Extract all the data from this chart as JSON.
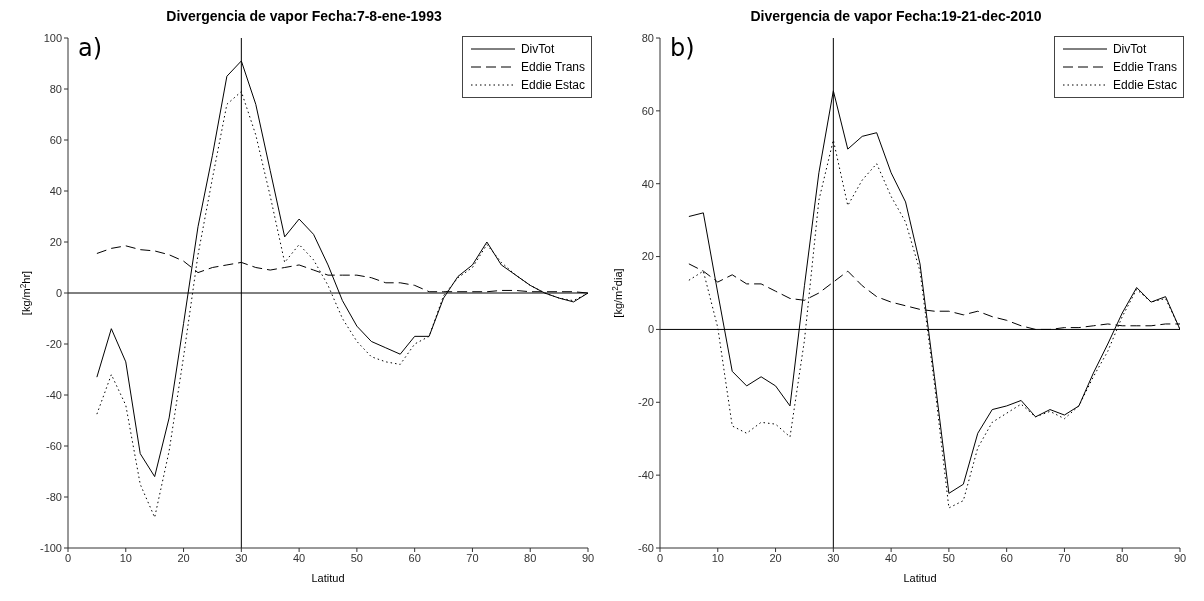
{
  "chart_data": [
    {
      "type": "line",
      "title": "Divergencia de vapor Fecha:7-8-ene-1993",
      "xlabel": "Latitud",
      "ylabel": "[kg/m$^{2}$hr]",
      "annotations": [
        "a)"
      ],
      "legend": "top right",
      "grid": false,
      "x": [
        5,
        7.5,
        10,
        12.5,
        15,
        17.5,
        20,
        22.5,
        25,
        27.5,
        30,
        32.5,
        35,
        37.5,
        40,
        42.5,
        45,
        47.5,
        50,
        52.5,
        55,
        57.5,
        60,
        62.5,
        65,
        67.5,
        70,
        72.5,
        75,
        77.5,
        80,
        82.5,
        85,
        87.5,
        90
      ],
      "xlim": [
        0,
        90
      ],
      "xticks": [
        0,
        10,
        20,
        30,
        40,
        50,
        60,
        70,
        80,
        90
      ],
      "ylim": [
        -100,
        100
      ],
      "yticks": [
        -100,
        -80,
        -60,
        -40,
        -20,
        0,
        20,
        40,
        60,
        80,
        100
      ],
      "ref_lines": [
        {
          "axis": "x",
          "value": 30,
          "color": "#000000"
        },
        {
          "axis": "y",
          "value": 0,
          "color": "#000000"
        }
      ],
      "series": [
        {
          "name": "DivTot",
          "color": "#000000",
          "line_style": "solid",
          "values": [
            -33,
            -14,
            -27,
            -63,
            -72,
            -49,
            -12,
            26,
            54,
            85,
            91,
            74,
            48,
            22,
            29,
            23,
            11,
            -3,
            -13,
            -19,
            -21.5,
            -24,
            -17,
            -17,
            -2,
            6.5,
            11,
            20,
            11,
            7,
            3,
            0,
            -2,
            -3.5,
            0
          ]
        },
        {
          "name": "Eddie Trans",
          "color": "#000000",
          "line_style": "dashed",
          "values": [
            15.5,
            17.5,
            18.5,
            17,
            16.5,
            15,
            12.5,
            8,
            10,
            11,
            12,
            10,
            9,
            10,
            11,
            9,
            7,
            7,
            7,
            6,
            4,
            4,
            3,
            0.5,
            0.5,
            0.5,
            0.5,
            0.5,
            1,
            1,
            0.5,
            0.5,
            0.5,
            0.5,
            0
          ]
        },
        {
          "name": "Eddie Estac",
          "color": "#000000",
          "line_style": "dotted",
          "values": [
            -47.5,
            -32,
            -44,
            -75,
            -88,
            -62,
            -25,
            15,
            45,
            74,
            79,
            62,
            38,
            12,
            19,
            13,
            3,
            -10,
            -19,
            -25,
            -27,
            -28,
            -20,
            -17,
            -1,
            6,
            10,
            19,
            12,
            7,
            3,
            0,
            -2,
            -3,
            0
          ]
        }
      ]
    },
    {
      "type": "line",
      "title": "Divergencia de vapor Fecha:19-21-dec-2010",
      "xlabel": "Latitud",
      "ylabel": "[kg/m$^{2}$dia]",
      "annotations": [
        "b)"
      ],
      "legend": "top right",
      "grid": false,
      "x": [
        5,
        7.5,
        10,
        12.5,
        15,
        17.5,
        20,
        22.5,
        25,
        27.5,
        30,
        32.5,
        35,
        37.5,
        40,
        42.5,
        45,
        47.5,
        50,
        52.5,
        55,
        57.5,
        60,
        62.5,
        65,
        67.5,
        70,
        72.5,
        75,
        77.5,
        80,
        82.5,
        85,
        87.5,
        90
      ],
      "xlim": [
        0,
        90
      ],
      "xticks": [
        0,
        10,
        20,
        30,
        40,
        50,
        60,
        70,
        80,
        90
      ],
      "ylim": [
        -60,
        80
      ],
      "yticks": [
        -60,
        -40,
        -20,
        0,
        20,
        40,
        60,
        80
      ],
      "ref_lines": [
        {
          "axis": "x",
          "value": 30,
          "color": "#000000"
        },
        {
          "axis": "y",
          "value": 0,
          "color": "#000000"
        }
      ],
      "series": [
        {
          "name": "DivTot",
          "color": "#000000",
          "line_style": "solid",
          "values": [
            31,
            32,
            10,
            -11.5,
            -15.5,
            -13,
            -15.5,
            -21,
            12,
            43,
            65.5,
            49.5,
            53,
            54,
            43,
            35,
            18,
            -13,
            -45,
            -42.5,
            -28.5,
            -22,
            -21,
            -19.5,
            -24,
            -22,
            -23.5,
            -21,
            -12,
            -4,
            4.5,
            11.5,
            7.5,
            9,
            0
          ]
        },
        {
          "name": "Eddie Trans",
          "color": "#000000",
          "line_style": "dashed",
          "values": [
            18,
            16,
            13,
            15,
            12.5,
            12.5,
            10.5,
            8.5,
            8,
            10,
            13,
            16,
            12,
            9,
            7.5,
            6.5,
            5.5,
            5,
            5,
            4,
            5,
            3.5,
            2.5,
            1,
            0,
            0,
            0.5,
            0.5,
            1,
            1.5,
            1,
            1,
            1,
            1.5,
            1.5
          ]
        },
        {
          "name": "Eddie Estac",
          "color": "#000000",
          "line_style": "dotted",
          "values": [
            13.5,
            16,
            0.5,
            -26.5,
            -28.5,
            -25.5,
            -26,
            -29.5,
            -3,
            35.5,
            52,
            34,
            41,
            45.5,
            36.5,
            29.5,
            16,
            -15,
            -49,
            -47,
            -32.5,
            -25.5,
            -23,
            -20.5,
            -24,
            -22.5,
            -24.5,
            -21,
            -13,
            -6,
            3.5,
            11,
            7.5,
            8.5,
            0
          ]
        }
      ]
    }
  ]
}
